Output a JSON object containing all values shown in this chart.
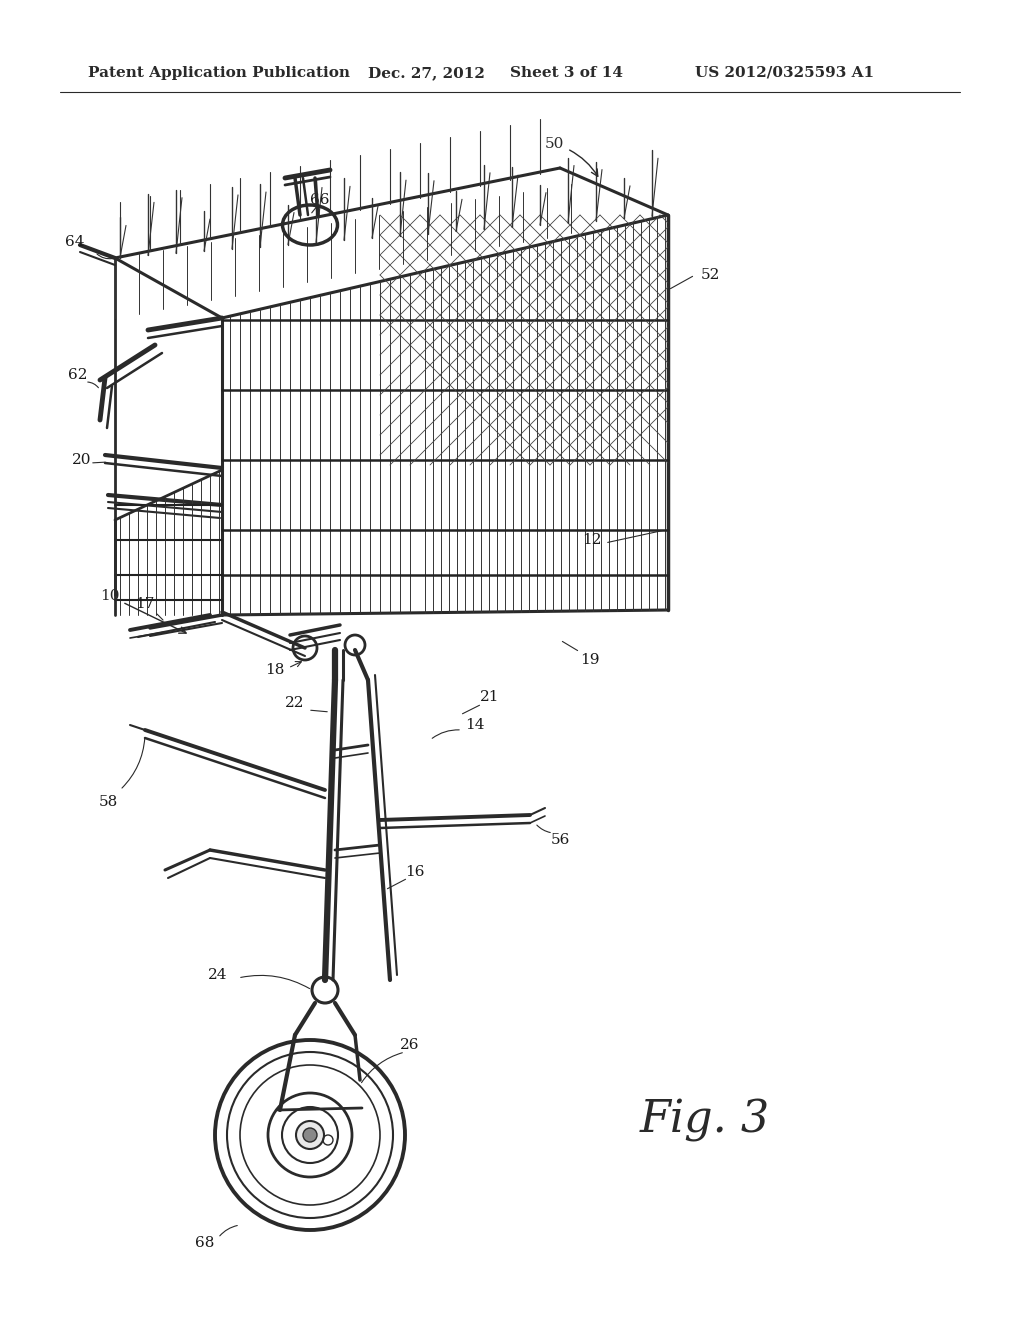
{
  "header_left": "Patent Application Publication",
  "header_date": "Dec. 27, 2012",
  "header_sheet": "Sheet 3 of 14",
  "header_patent": "US 2012/0325593 A1",
  "fig_label": "Fig. 3",
  "background": "#ffffff",
  "line_color": "#2a2a2a",
  "mesh_color": "#3a3a3a",
  "label_color": "#1a1a1a",
  "label_fontsize": 11,
  "fig_label_fontsize": 32,
  "header_fontsize": 11
}
